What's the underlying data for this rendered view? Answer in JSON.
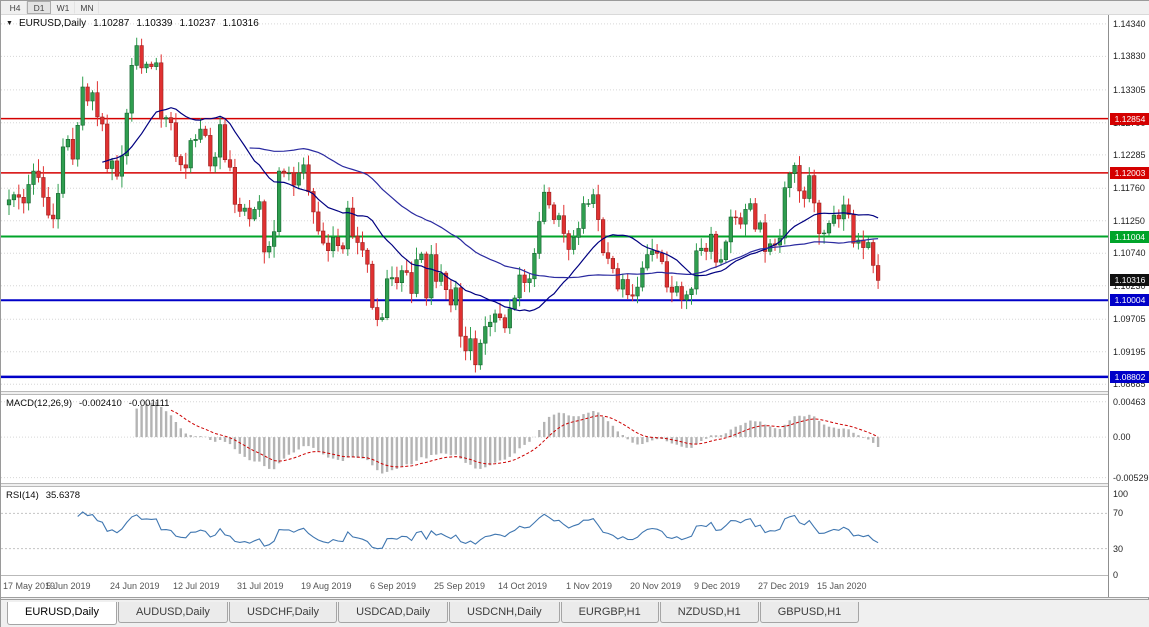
{
  "toolbar": {
    "timeframes": [
      {
        "label": "H4",
        "active": false
      },
      {
        "label": "D1",
        "active": true
      },
      {
        "label": "W1",
        "active": false
      },
      {
        "label": "MN",
        "active": false
      }
    ]
  },
  "chart": {
    "title": {
      "symbol": "EURUSD,Daily",
      "open": "1.10287",
      "high": "1.10339",
      "low": "1.10237",
      "close": "1.10316"
    },
    "price_axis_labels": [
      "1.14340",
      "1.13830",
      "1.13305",
      "1.12790",
      "1.12285",
      "1.11760",
      "1.11250",
      "1.10740",
      "1.10230",
      "1.09705",
      "1.09195",
      "1.08685"
    ],
    "x_labels": [
      {
        "label": "17 May 2019",
        "idx": 0
      },
      {
        "label": "5 Jun 2019",
        "idx": 13
      },
      {
        "label": "24 Jun 2019",
        "idx": 26
      },
      {
        "label": "12 Jul 2019",
        "idx": 39
      },
      {
        "label": "31 Jul 2019",
        "idx": 52
      },
      {
        "label": "19 Aug 2019",
        "idx": 65
      },
      {
        "label": "6 Sep 2019",
        "idx": 79
      },
      {
        "label": "25 Sep 2019",
        "idx": 92
      },
      {
        "label": "14 Oct 2019",
        "idx": 105
      },
      {
        "label": "1 Nov 2019",
        "idx": 119
      },
      {
        "label": "20 Nov 2019",
        "idx": 132
      },
      {
        "label": "9 Dec 2019",
        "idx": 145
      },
      {
        "label": "27 Dec 2019",
        "idx": 158
      },
      {
        "label": "15 Jan 2020",
        "idx": 170
      }
    ]
  },
  "macd": {
    "label": "MACD(12,26,9)",
    "value_main": "-0.002410",
    "value_signal": "-0.001111",
    "axis_labels": [
      "0.00463",
      "0.00",
      "-0.00529"
    ]
  },
  "rsi": {
    "label": "RSI(14)",
    "value": "35.6378",
    "axis_labels": [
      "100",
      "70",
      "30",
      "0"
    ]
  },
  "tabs": [
    {
      "label": "EURUSD,Daily",
      "active": true
    },
    {
      "label": "AUDUSD,Daily",
      "active": false
    },
    {
      "label": "USDCHF,Daily",
      "active": false
    },
    {
      "label": "USDCAD,Daily",
      "active": false
    },
    {
      "label": "USDCNH,Daily",
      "active": false
    },
    {
      "label": "EURGBP,H1",
      "active": false
    },
    {
      "label": "NZDUSD,H1",
      "active": false
    },
    {
      "label": "GBPUSD,H1",
      "active": false
    }
  ],
  "colors": {
    "bull": "#2f9e4f",
    "bull_border": "#15632f",
    "bear": "#e03131",
    "bear_border": "#96201f",
    "ma_fast": "#000080",
    "ma_slow": "#2b2ba0",
    "macd_hist": "#b4b4b4",
    "macd_signal": "#cc0000",
    "rsi_line": "#3f76b0",
    "grid": "#d6d6d6",
    "level": "#c4c4c4"
  },
  "chart_data": {
    "type": "candlestick",
    "symbol": "EURUSD",
    "timeframe": "Daily",
    "y_range": [
      1.0858,
      1.1448
    ],
    "current_price": {
      "label": "1.10316",
      "value": 1.10316
    },
    "hlines": [
      {
        "label": "1.12854",
        "value": 1.12854,
        "color": "#d40000",
        "width": 1.5
      },
      {
        "label": "1.12003",
        "value": 1.12003,
        "color": "#d40000",
        "width": 1.5
      },
      {
        "label": "1.11004",
        "value": 1.11004,
        "color": "#00a42a",
        "width": 2
      },
      {
        "label": "1.10004",
        "value": 1.10004,
        "color": "#0000c8",
        "width": 2
      },
      {
        "label": "1.08802",
        "value": 1.08802,
        "color": "#0000c8",
        "width": 2.5
      }
    ],
    "indicators": {
      "ma_fast_period": 20,
      "ma_slow_period": 50,
      "macd": [
        12,
        26,
        9
      ],
      "rsi_period": 14
    },
    "closes": [
      1.1158,
      1.1166,
      1.1162,
      1.1153,
      1.1182,
      1.1203,
      1.1193,
      1.1162,
      1.1134,
      1.1128,
      1.1168,
      1.1241,
      1.1253,
      1.1222,
      1.1275,
      1.1335,
      1.1313,
      1.1326,
      1.1288,
      1.1277,
      1.1207,
      1.1219,
      1.1195,
      1.1227,
      1.1294,
      1.1369,
      1.14,
      1.1365,
      1.1371,
      1.1367,
      1.1373,
      1.1285,
      1.1287,
      1.1279,
      1.1226,
      1.1213,
      1.1208,
      1.1251,
      1.1253,
      1.1269,
      1.1259,
      1.1211,
      1.1225,
      1.1276,
      1.1221,
      1.1209,
      1.1151,
      1.114,
      1.1145,
      1.1128,
      1.1143,
      1.1155,
      1.1076,
      1.1085,
      1.1108,
      1.1203,
      1.12,
      1.12,
      1.1181,
      1.12,
      1.1213,
      1.1171,
      1.1139,
      1.1109,
      1.109,
      1.1078,
      1.1099,
      1.1086,
      1.1081,
      1.1145,
      1.1101,
      1.1091,
      1.1079,
      1.1057,
      1.0989,
      1.097,
      1.0973,
      1.1034,
      1.1036,
      1.1028,
      1.1047,
      1.1044,
      1.1011,
      1.1064,
      1.1073,
      1.1004,
      1.1072,
      1.103,
      1.1043,
      1.1017,
      1.0993,
      1.102,
      1.0944,
      1.0921,
      1.094,
      1.0899,
      1.0933,
      1.0959,
      1.0966,
      1.0979,
      1.0973,
      1.0957,
      1.0987,
      1.1004,
      1.104,
      1.1028,
      1.1034,
      1.1074,
      1.1124,
      1.117,
      1.115,
      1.1127,
      1.1133,
      1.1105,
      1.108,
      1.1099,
      1.1113,
      1.1152,
      1.1152,
      1.1166,
      1.1127,
      1.1075,
      1.1066,
      1.105,
      1.1018,
      1.1033,
      1.1009,
      1.1007,
      1.1021,
      1.1051,
      1.1072,
      1.1078,
      1.1074,
      1.1061,
      1.1021,
      1.1013,
      1.1022,
      1.1001,
      1.1009,
      1.1018,
      1.1078,
      1.1082,
      1.1077,
      1.1104,
      1.106,
      1.1064,
      1.1092,
      1.1131,
      1.113,
      1.112,
      1.1143,
      1.1152,
      1.1112,
      1.1122,
      1.1077,
      1.1089,
      1.1087,
      1.1098,
      1.1177,
      1.1199,
      1.1212,
      1.1172,
      1.116,
      1.1196,
      1.1153,
      1.1105,
      1.1106,
      1.1121,
      1.1134,
      1.1128,
      1.115,
      1.1135,
      1.109,
      1.1095,
      1.1083,
      1.1091,
      1.1055,
      1.10316
    ]
  }
}
